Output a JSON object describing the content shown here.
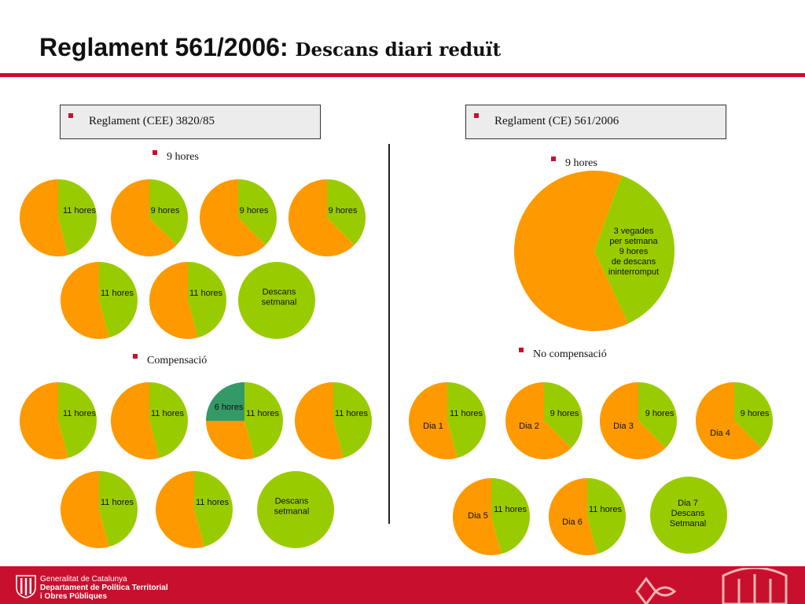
{
  "title": {
    "main": "Reglament 561/2006:",
    "sub": "Descans diari reduït"
  },
  "left": {
    "box_label": "Reglament (CEE) 3820/85",
    "section1_label": "9 hores",
    "section2_label": "Compensació"
  },
  "right": {
    "box_label": "Reglament (CE) 561/2006",
    "section1_label": "9 hores",
    "section2_label": "No compensació"
  },
  "colors": {
    "orange": "#FF9900",
    "green": "#99CC00",
    "teal": "#339966",
    "accent": "#C8102E"
  },
  "chart_data": [
    {
      "type": "pie",
      "group": "3820/85 - 9 hores",
      "slices": [
        {
          "label": "11 hores",
          "value": 0.458,
          "color": "green"
        },
        {
          "label": "",
          "value": 0.542,
          "color": "orange"
        }
      ]
    },
    {
      "type": "pie",
      "group": "3820/85 - 9 hores",
      "slices": [
        {
          "label": "9 hores",
          "value": 0.375,
          "color": "green"
        },
        {
          "label": "",
          "value": 0.625,
          "color": "orange"
        }
      ]
    },
    {
      "type": "pie",
      "group": "3820/85 - 9 hores",
      "slices": [
        {
          "label": "9 hores",
          "value": 0.375,
          "color": "green"
        },
        {
          "label": "",
          "value": 0.625,
          "color": "orange"
        }
      ]
    },
    {
      "type": "pie",
      "group": "3820/85 - 9 hores",
      "slices": [
        {
          "label": "9 hores",
          "value": 0.375,
          "color": "green"
        },
        {
          "label": "",
          "value": 0.625,
          "color": "orange"
        }
      ]
    },
    {
      "type": "pie",
      "group": "3820/85 - 9 hores",
      "slices": [
        {
          "label": "11 hores",
          "value": 0.458,
          "color": "green"
        },
        {
          "label": "",
          "value": 0.542,
          "color": "orange"
        }
      ]
    },
    {
      "type": "pie",
      "group": "3820/85 - 9 hores",
      "slices": [
        {
          "label": "11 hores",
          "value": 0.458,
          "color": "green"
        },
        {
          "label": "",
          "value": 0.542,
          "color": "orange"
        }
      ]
    },
    {
      "type": "pie",
      "group": "3820/85 - 9 hores",
      "slices": [
        {
          "label": "Descans setmanal",
          "value": 1,
          "color": "green"
        }
      ]
    },
    {
      "type": "pie",
      "group": "3820/85 - Compensació",
      "slices": [
        {
          "label": "11 hores",
          "value": 0.458,
          "color": "green"
        },
        {
          "label": "",
          "value": 0.542,
          "color": "orange"
        }
      ]
    },
    {
      "type": "pie",
      "group": "3820/85 - Compensació",
      "slices": [
        {
          "label": "11 hores",
          "value": 0.458,
          "color": "green"
        },
        {
          "label": "",
          "value": 0.542,
          "color": "orange"
        }
      ]
    },
    {
      "type": "pie",
      "group": "3820/85 - Compensació",
      "slices": [
        {
          "label": "11 hores",
          "value": 0.458,
          "color": "green"
        },
        {
          "label": "",
          "value": 0.292,
          "color": "orange"
        },
        {
          "label": "6 hores",
          "value": 0.25,
          "color": "teal"
        }
      ]
    },
    {
      "type": "pie",
      "group": "3820/85 - Compensació",
      "slices": [
        {
          "label": "11 hores",
          "value": 0.458,
          "color": "green"
        },
        {
          "label": "",
          "value": 0.542,
          "color": "orange"
        }
      ]
    },
    {
      "type": "pie",
      "group": "3820/85 - Compensació",
      "slices": [
        {
          "label": "11 hores",
          "value": 0.458,
          "color": "green"
        },
        {
          "label": "",
          "value": 0.542,
          "color": "orange"
        }
      ]
    },
    {
      "type": "pie",
      "group": "3820/85 - Compensació",
      "slices": [
        {
          "label": "11 hores",
          "value": 0.458,
          "color": "green"
        },
        {
          "label": "",
          "value": 0.542,
          "color": "orange"
        }
      ]
    },
    {
      "type": "pie",
      "group": "3820/85 - Compensació",
      "slices": [
        {
          "label": "Descans setmanal",
          "value": 1,
          "color": "green"
        }
      ]
    },
    {
      "type": "pie",
      "group": "561/2006 - 9 hores",
      "slices": [
        {
          "label": "3 vegades per setmana 9 hores de descans ininterromput",
          "value": 0.375,
          "color": "green"
        },
        {
          "label": "",
          "value": 0.625,
          "color": "orange"
        }
      ]
    },
    {
      "type": "pie",
      "group": "561/2006 - No compensació",
      "slices": [
        {
          "label": "11 hores",
          "value": 0.458,
          "color": "green"
        },
        {
          "label": "Dia 1",
          "value": 0.542,
          "color": "orange"
        }
      ]
    },
    {
      "type": "pie",
      "group": "561/2006 - No compensació",
      "slices": [
        {
          "label": "9 hores",
          "value": 0.375,
          "color": "green"
        },
        {
          "label": "Dia 2",
          "value": 0.625,
          "color": "orange"
        }
      ]
    },
    {
      "type": "pie",
      "group": "561/2006 - No compensació",
      "slices": [
        {
          "label": "9 hores",
          "value": 0.375,
          "color": "green"
        },
        {
          "label": "Dia 3",
          "value": 0.625,
          "color": "orange"
        }
      ]
    },
    {
      "type": "pie",
      "group": "561/2006 - No compensació",
      "slices": [
        {
          "label": "9 hores",
          "value": 0.375,
          "color": "green"
        },
        {
          "label": "Dia 4",
          "value": 0.625,
          "color": "orange"
        }
      ]
    },
    {
      "type": "pie",
      "group": "561/2006 - No compensació",
      "slices": [
        {
          "label": "11 hores",
          "value": 0.458,
          "color": "green"
        },
        {
          "label": "Dia 5",
          "value": 0.542,
          "color": "orange"
        }
      ]
    },
    {
      "type": "pie",
      "group": "561/2006 - No compensació",
      "slices": [
        {
          "label": "11 hores",
          "value": 0.458,
          "color": "green"
        },
        {
          "label": "Dia 6",
          "value": 0.542,
          "color": "orange"
        }
      ]
    },
    {
      "type": "pie",
      "group": "561/2006 - No compensació",
      "slices": [
        {
          "label": "Dia 7 Descans Setmanal",
          "value": 1,
          "color": "green"
        }
      ]
    }
  ],
  "footer": {
    "line1": "Generalitat de Catalunya",
    "line2": "Departament de Política Territorial",
    "line3": "i Obres Públiques"
  }
}
